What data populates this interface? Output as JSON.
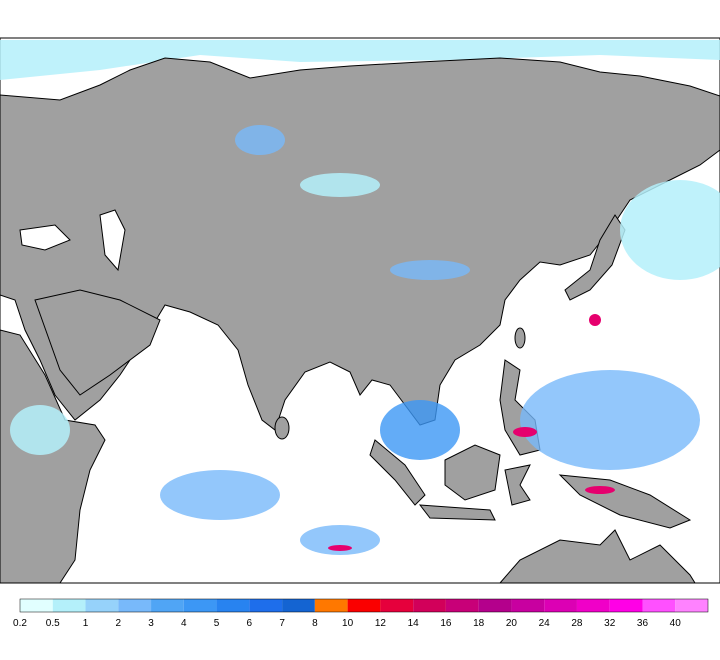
{
  "legend": {
    "labels": [
      0.2,
      0.5,
      1,
      2,
      3,
      4,
      5,
      6,
      7,
      8,
      10,
      12,
      14,
      16,
      18,
      20,
      24,
      28,
      32,
      36,
      40
    ],
    "colors": [
      "#e1ffff",
      "#b4f0fa",
      "#96d2fa",
      "#78b9fa",
      "#50a5f5",
      "#3c97f5",
      "#2883f0",
      "#1e6eeb",
      "#1464d2",
      "#ff7800",
      "#fa0000",
      "#e6003c",
      "#d2005a",
      "#c80078",
      "#b4008c",
      "#c800a0",
      "#dc00b4",
      "#f000c8",
      "#ff00e6",
      "#ff50ff",
      "#ff82ff"
    ]
  }
}
